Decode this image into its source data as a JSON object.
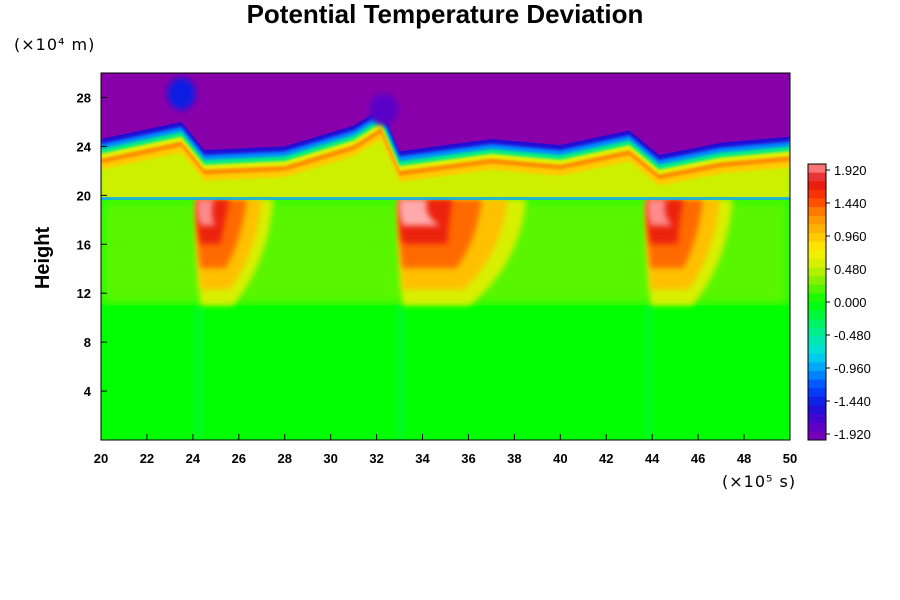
{
  "chart_data": {
    "type": "heatmap",
    "title": "Potential Temperature Deviation",
    "ylabel": "Height",
    "xlabel": "",
    "x_unit": "(×10⁵ s)",
    "y_unit": "(×10⁴ m)",
    "x_ticks": [
      20,
      22,
      24,
      26,
      28,
      30,
      32,
      34,
      36,
      38,
      40,
      42,
      44,
      46,
      48,
      50
    ],
    "y_ticks": [
      4,
      8,
      12,
      16,
      20,
      24,
      28
    ],
    "xlim": [
      20,
      50
    ],
    "ylim": [
      0,
      30
    ],
    "colorbar": {
      "ticks": [
        "1.920",
        "1.440",
        "0.960",
        "0.480",
        "0.000",
        "-0.480",
        "-0.960",
        "-1.440",
        "-1.920"
      ],
      "range": [
        -1.92,
        1.92
      ],
      "levels": 32
    },
    "fields": {
      "background_value": 0.0,
      "stratosphere_value": -2.0,
      "tropopause_height": 19.7,
      "boundary_layer_top": 11.0,
      "upper_boundary_points": [
        [
          20,
          22.3
        ],
        [
          23.5,
          23.7
        ],
        [
          24.5,
          21.4
        ],
        [
          28,
          21.7
        ],
        [
          31,
          23.4
        ],
        [
          32.2,
          24.8
        ],
        [
          33,
          21.3
        ],
        [
          37,
          22.3
        ],
        [
          40,
          21.8
        ],
        [
          43,
          23.0
        ],
        [
          44.3,
          21.0
        ],
        [
          47,
          22.0
        ],
        [
          50,
          22.5
        ]
      ],
      "warm_plumes": [
        {
          "x_start": 24.2,
          "x_peak": 25.0,
          "x_end": 27.5,
          "peak_value": 1.9
        },
        {
          "x_start": 33.0,
          "x_peak": 35.0,
          "x_end": 38.5,
          "peak_value": 2.0
        },
        {
          "x_start": 43.8,
          "x_peak": 45.0,
          "x_end": 47.5,
          "peak_value": 1.9
        }
      ],
      "cold_anomalies": [
        {
          "x": 32.3,
          "y": 27.0,
          "value": -1.7
        },
        {
          "x": 23.5,
          "y": 28.3,
          "value": -1.4
        }
      ]
    },
    "colors": {
      "low": "#8800aa",
      "mid": "#00ff00",
      "high": "#ff9999",
      "bar_border": "#000000"
    }
  }
}
